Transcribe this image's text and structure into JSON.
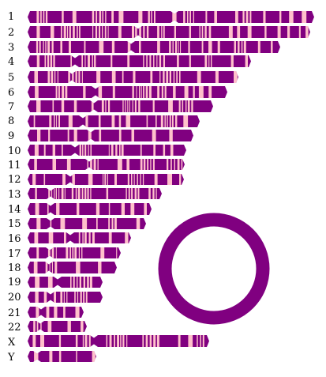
{
  "colors": {
    "band_dark": "#800080",
    "band_light": "#ffc0cb",
    "ring": "#800080",
    "label": "#000000"
  },
  "labels": {
    "chr1": "1",
    "chr2": "2",
    "chr3": "3",
    "chr4": "4",
    "chr5": "5",
    "chr6": "6",
    "chr7": "7",
    "chr8": "8",
    "chr9": "9",
    "chr10": "10",
    "chr11": "11",
    "chr12": "12",
    "chr13": "13",
    "chr14": "14",
    "chr15": "15",
    "chr16": "16",
    "chr17": "17",
    "chr18": "18",
    "chr19": "19",
    "chr20": "20",
    "chr21": "21",
    "chr22": "22",
    "chrX": "X",
    "chrY": "Y"
  }
}
